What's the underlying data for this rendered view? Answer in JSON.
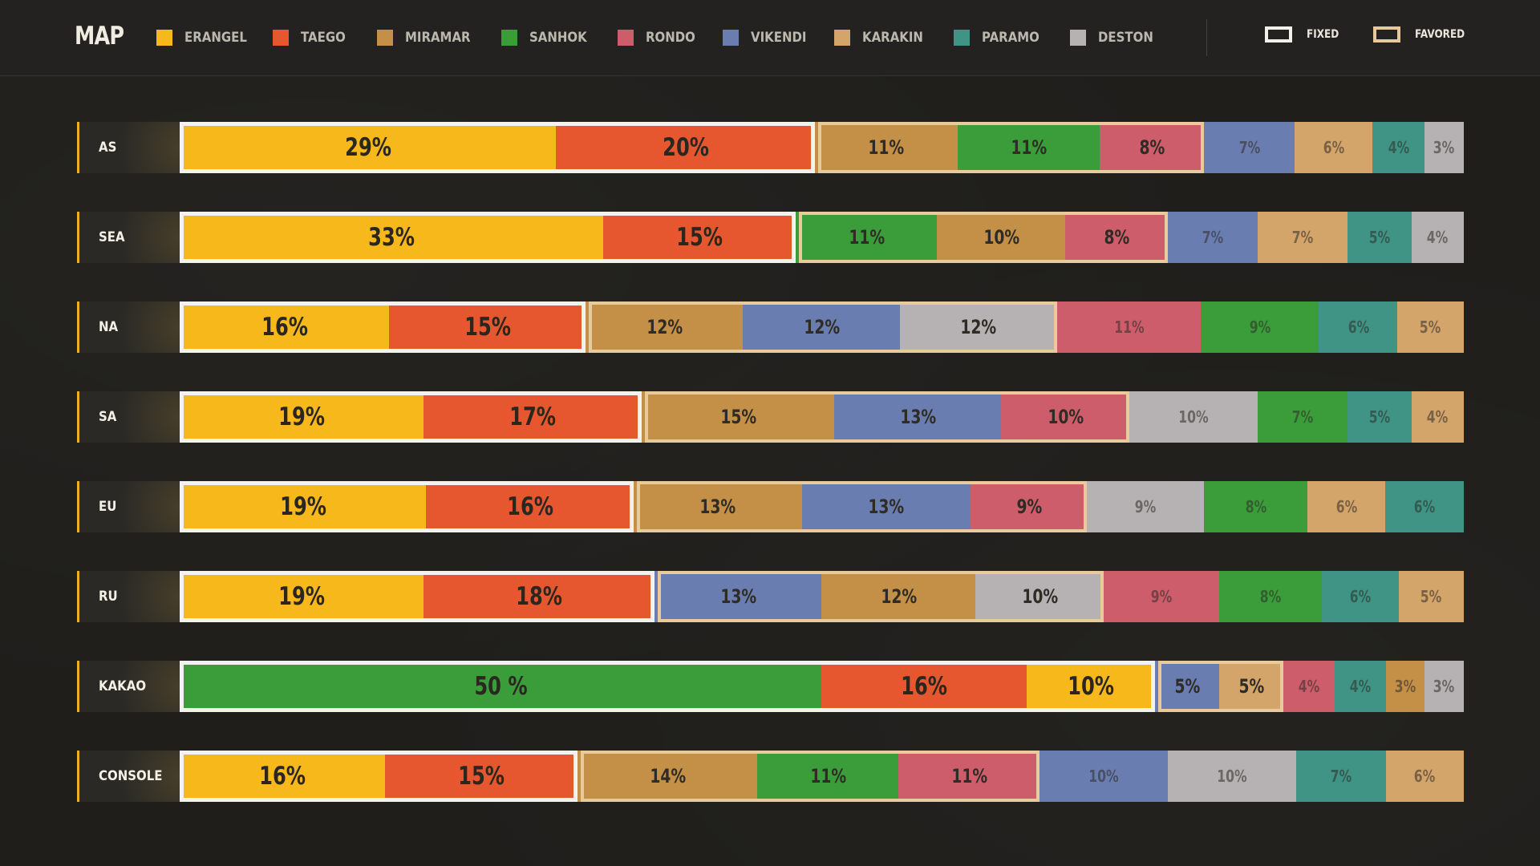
{
  "header": {
    "title": "MAP",
    "legend": [
      {
        "label": "ERANGEL",
        "color": "#f6b81b"
      },
      {
        "label": "TAEGO",
        "color": "#e6572f"
      },
      {
        "label": "MIRAMAR",
        "color": "#c48f46"
      },
      {
        "label": "SANHOK",
        "color": "#3a9d3a"
      },
      {
        "label": "RONDO",
        "color": "#cd5d6b"
      },
      {
        "label": "VIKENDI",
        "color": "#6a7db1"
      },
      {
        "label": "KARAKIN",
        "color": "#d4a56a"
      },
      {
        "label": "PARAMO",
        "color": "#3f9485"
      },
      {
        "label": "DESTON",
        "color": "#b6b1b2"
      }
    ],
    "keys": [
      {
        "label": "FIXED",
        "style": "fixed"
      },
      {
        "label": "FAVORED",
        "style": "favored"
      }
    ]
  },
  "chart_data": {
    "type": "bar",
    "orientation": "horizontal",
    "stacked": true,
    "title": "MAP",
    "categories": [
      "AS",
      "SEA",
      "NA",
      "SA",
      "EU",
      "RU",
      "KAKAO",
      "CONSOLE"
    ],
    "rows": [
      {
        "region": "AS",
        "fixed_count": 2,
        "favored_count": 3,
        "segments": [
          {
            "map": "ERANGEL",
            "value": 29,
            "label": "29%"
          },
          {
            "map": "TAEGO",
            "value": 20,
            "label": "20%"
          },
          {
            "map": "MIRAMAR",
            "value": 11,
            "label": "11%"
          },
          {
            "map": "SANHOK",
            "value": 11,
            "label": "11%"
          },
          {
            "map": "RONDO",
            "value": 8,
            "label": "8%"
          },
          {
            "map": "VIKENDI",
            "value": 7,
            "label": "7%"
          },
          {
            "map": "KARAKIN",
            "value": 6,
            "label": "6%"
          },
          {
            "map": "PARAMO",
            "value": 4,
            "label": "4%"
          },
          {
            "map": "DESTON",
            "value": 3,
            "label": "3%"
          }
        ]
      },
      {
        "region": "SEA",
        "fixed_count": 2,
        "favored_count": 3,
        "segments": [
          {
            "map": "ERANGEL",
            "value": 33,
            "label": "33%"
          },
          {
            "map": "TAEGO",
            "value": 15,
            "label": "15%"
          },
          {
            "map": "SANHOK",
            "value": 11,
            "label": "11%"
          },
          {
            "map": "MIRAMAR",
            "value": 10,
            "label": "10%"
          },
          {
            "map": "RONDO",
            "value": 8,
            "label": "8%"
          },
          {
            "map": "VIKENDI",
            "value": 7,
            "label": "7%"
          },
          {
            "map": "KARAKIN",
            "value": 7,
            "label": "7%"
          },
          {
            "map": "PARAMO",
            "value": 5,
            "label": "5%"
          },
          {
            "map": "DESTON",
            "value": 4,
            "label": "4%"
          }
        ]
      },
      {
        "region": "NA",
        "fixed_count": 2,
        "favored_count": 3,
        "segments": [
          {
            "map": "ERANGEL",
            "value": 16,
            "label": "16%"
          },
          {
            "map": "TAEGO",
            "value": 15,
            "label": "15%"
          },
          {
            "map": "MIRAMAR",
            "value": 12,
            "label": "12%"
          },
          {
            "map": "VIKENDI",
            "value": 12,
            "label": "12%"
          },
          {
            "map": "DESTON",
            "value": 12,
            "label": "12%"
          },
          {
            "map": "RONDO",
            "value": 11,
            "label": "11%"
          },
          {
            "map": "SANHOK",
            "value": 9,
            "label": "9%"
          },
          {
            "map": "PARAMO",
            "value": 6,
            "label": "6%"
          },
          {
            "map": "KARAKIN",
            "value": 5,
            "label": "5%"
          }
        ]
      },
      {
        "region": "SA",
        "fixed_count": 2,
        "favored_count": 3,
        "segments": [
          {
            "map": "ERANGEL",
            "value": 19,
            "label": "19%"
          },
          {
            "map": "TAEGO",
            "value": 17,
            "label": "17%"
          },
          {
            "map": "MIRAMAR",
            "value": 15,
            "label": "15%"
          },
          {
            "map": "VIKENDI",
            "value": 13,
            "label": "13%"
          },
          {
            "map": "RONDO",
            "value": 10,
            "label": "10%"
          },
          {
            "map": "DESTON",
            "value": 10,
            "label": "10%"
          },
          {
            "map": "SANHOK",
            "value": 7,
            "label": "7%"
          },
          {
            "map": "PARAMO",
            "value": 5,
            "label": "5%"
          },
          {
            "map": "KARAKIN",
            "value": 4,
            "label": "4%"
          }
        ]
      },
      {
        "region": "EU",
        "fixed_count": 2,
        "favored_count": 3,
        "segments": [
          {
            "map": "ERANGEL",
            "value": 19,
            "label": "19%"
          },
          {
            "map": "TAEGO",
            "value": 16,
            "label": "16%"
          },
          {
            "map": "MIRAMAR",
            "value": 13,
            "label": "13%"
          },
          {
            "map": "VIKENDI",
            "value": 13,
            "label": "13%"
          },
          {
            "map": "RONDO",
            "value": 9,
            "label": "9%"
          },
          {
            "map": "DESTON",
            "value": 9,
            "label": "9%"
          },
          {
            "map": "SANHOK",
            "value": 8,
            "label": "8%"
          },
          {
            "map": "KARAKIN",
            "value": 6,
            "label": "6%"
          },
          {
            "map": "PARAMO",
            "value": 6,
            "label": "6%"
          }
        ]
      },
      {
        "region": "RU",
        "fixed_count": 2,
        "favored_count": 3,
        "segments": [
          {
            "map": "ERANGEL",
            "value": 19,
            "label": "19%"
          },
          {
            "map": "TAEGO",
            "value": 18,
            "label": "18%"
          },
          {
            "map": "VIKENDI",
            "value": 13,
            "label": "13%"
          },
          {
            "map": "MIRAMAR",
            "value": 12,
            "label": "12%"
          },
          {
            "map": "DESTON",
            "value": 10,
            "label": "10%"
          },
          {
            "map": "RONDO",
            "value": 9,
            "label": "9%"
          },
          {
            "map": "SANHOK",
            "value": 8,
            "label": "8%"
          },
          {
            "map": "PARAMO",
            "value": 6,
            "label": "6%"
          },
          {
            "map": "KARAKIN",
            "value": 5,
            "label": "5%"
          }
        ]
      },
      {
        "region": "KAKAO",
        "fixed_count": 3,
        "favored_count": 2,
        "segments": [
          {
            "map": "SANHOK",
            "value": 50,
            "label": "50 %"
          },
          {
            "map": "TAEGO",
            "value": 16,
            "label": "16%"
          },
          {
            "map": "ERANGEL",
            "value": 10,
            "label": "10%"
          },
          {
            "map": "VIKENDI",
            "value": 5,
            "label": "5%"
          },
          {
            "map": "KARAKIN",
            "value": 5,
            "label": "5%"
          },
          {
            "map": "RONDO",
            "value": 4,
            "label": "4%"
          },
          {
            "map": "PARAMO",
            "value": 4,
            "label": "4%"
          },
          {
            "map": "MIRAMAR",
            "value": 3,
            "label": "3%"
          },
          {
            "map": "DESTON",
            "value": 3,
            "label": "3%"
          }
        ]
      },
      {
        "region": "CONSOLE",
        "fixed_count": 2,
        "favored_count": 3,
        "segments": [
          {
            "map": "ERANGEL",
            "value": 16,
            "label": "16%"
          },
          {
            "map": "TAEGO",
            "value": 15,
            "label": "15%"
          },
          {
            "map": "MIRAMAR",
            "value": 14,
            "label": "14%"
          },
          {
            "map": "SANHOK",
            "value": 11,
            "label": "11%"
          },
          {
            "map": "RONDO",
            "value": 11,
            "label": "11%"
          },
          {
            "map": "VIKENDI",
            "value": 10,
            "label": "10%"
          },
          {
            "map": "DESTON",
            "value": 10,
            "label": "10%"
          },
          {
            "map": "PARAMO",
            "value": 7,
            "label": "7%"
          },
          {
            "map": "KARAKIN",
            "value": 6,
            "label": "6%"
          }
        ]
      }
    ]
  }
}
